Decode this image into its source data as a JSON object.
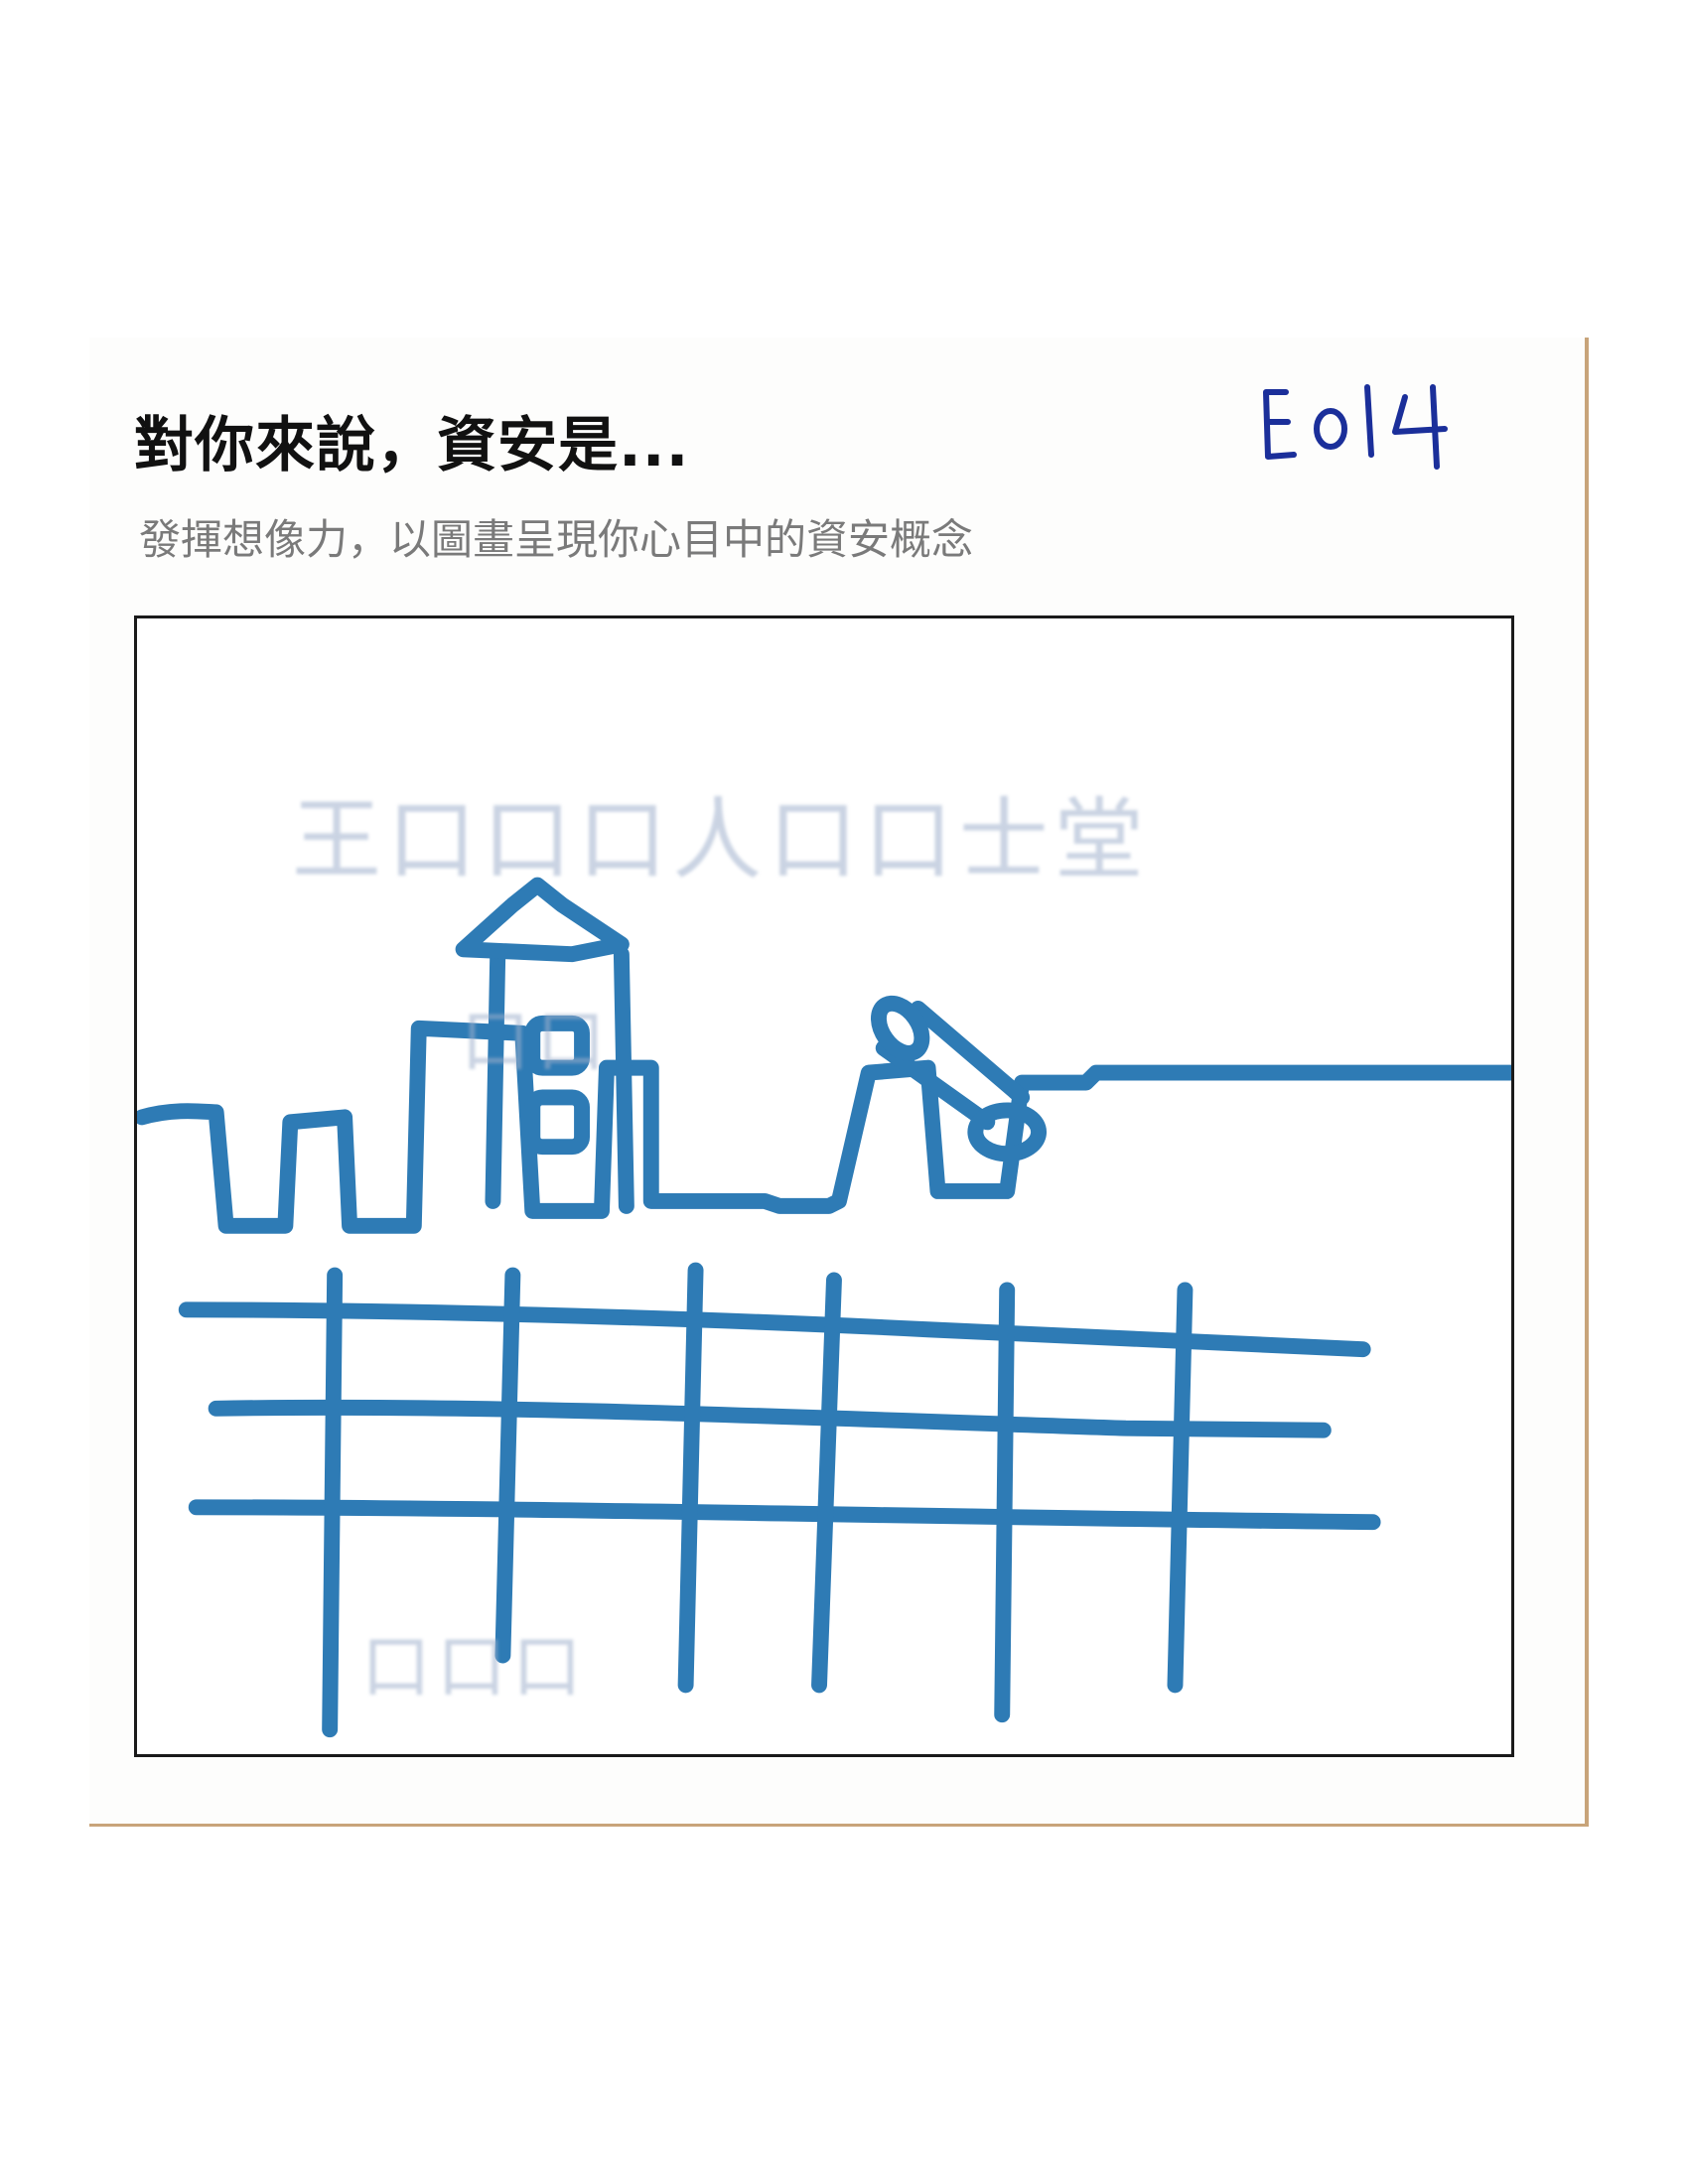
{
  "card": {
    "title": "對你來說，資安是...",
    "subtitle": "發揮想像力，以圖畫呈現你心目中的資安概念",
    "code_label": "E014"
  },
  "drawing": {
    "subject": "castle wall with tower and cannon above a grid fence",
    "ink_color": "#2e7bb5",
    "show_through_color": "#9fb0cc"
  }
}
